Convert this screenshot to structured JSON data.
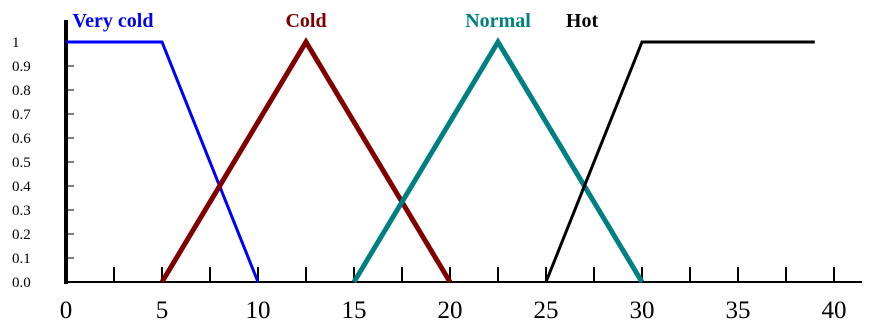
{
  "chart_data": {
    "type": "line",
    "title": "",
    "xlabel": "",
    "ylabel": "",
    "xlim": [
      0,
      42
    ],
    "ylim": [
      0,
      1
    ],
    "grid": false,
    "legend": "labels above peaks",
    "xticks": [
      0,
      5,
      10,
      15,
      20,
      25,
      30,
      35,
      40
    ],
    "xtick_labels": [
      "0",
      "5",
      "10",
      "15",
      "20",
      "25",
      "30",
      "35",
      "40"
    ],
    "yticks": [
      0,
      0.1,
      0.2,
      0.3,
      0.4,
      0.5,
      0.6,
      0.7,
      0.8,
      0.9,
      1
    ],
    "ytick_labels": [
      "0.0",
      "0.1",
      "0.2",
      "0.3",
      "0.4",
      "0.5",
      "0.6",
      "0.7",
      "0.8",
      "0.9",
      "1"
    ],
    "series": [
      {
        "name": "Very cold",
        "color": "#0000ff",
        "x": [
          0,
          5,
          10
        ],
        "y": [
          1,
          1,
          0
        ]
      },
      {
        "name": "Cold",
        "color": "#800000",
        "x": [
          5,
          12.5,
          20
        ],
        "y": [
          0,
          1,
          0
        ]
      },
      {
        "name": "Normal",
        "color": "#008080",
        "x": [
          15,
          22.5,
          30
        ],
        "y": [
          0,
          1,
          0
        ]
      },
      {
        "name": "Hot",
        "color": "#000000",
        "x": [
          25,
          30,
          39
        ],
        "y": [
          0,
          1,
          1
        ]
      }
    ]
  }
}
